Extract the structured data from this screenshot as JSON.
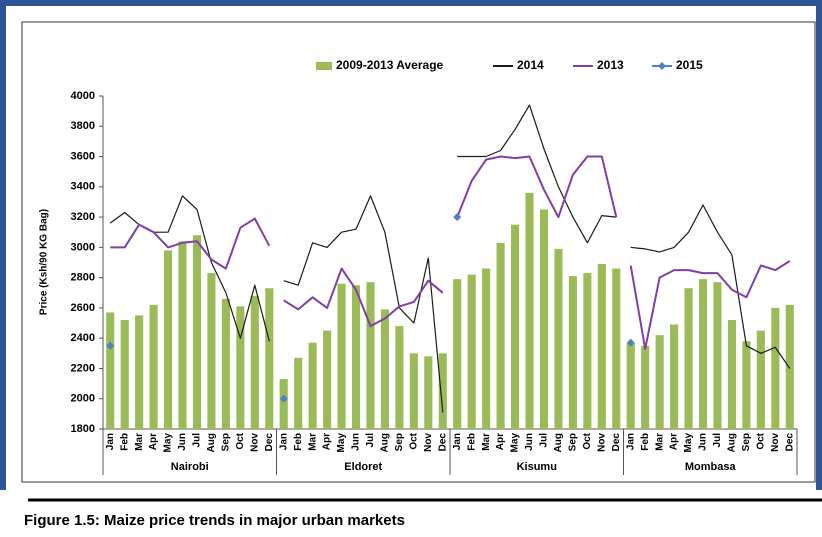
{
  "chart_data": {
    "type": "bar",
    "y_label": "Price (Ksh/90 KG Bag)",
    "caption": "Figure 1.5:   Maize price trends in major urban markets",
    "categories": [
      "Jan",
      "Feb",
      "Mar",
      "Apr",
      "May",
      "Jun",
      "Jul",
      "Aug",
      "Sep",
      "Oct",
      "Nov",
      "Dec",
      "Jan",
      "Feb",
      "Mar",
      "Apr",
      "May",
      "Jun",
      "Jul",
      "Aug",
      "Sep",
      "Oct",
      "Nov",
      "Dec",
      "Jan",
      "Feb",
      "Mar",
      "Apr",
      "May",
      "Jun",
      "Jul",
      "Aug",
      "Sep",
      "Oct",
      "Nov",
      "Dec",
      "Jan",
      "Feb",
      "Mar",
      "Apr",
      "May",
      "Jun",
      "Jul",
      "Aug",
      "Sep",
      "Oct",
      "Nov",
      "Dec"
    ],
    "groups": [
      "Nairobi",
      "Eldoret",
      "Kisumu",
      "Mombasa"
    ],
    "series": [
      {
        "name": "2009-2013 Average",
        "type": "bar",
        "color": "#9bbb59",
        "values": [
          2570,
          2520,
          2550,
          2620,
          2980,
          3040,
          3080,
          2830,
          2660,
          2610,
          2680,
          2730,
          2130,
          2270,
          2370,
          2450,
          2760,
          2750,
          2770,
          2590,
          2480,
          2300,
          2280,
          2300,
          2790,
          2820,
          2860,
          3030,
          3150,
          3360,
          3250,
          2990,
          2810,
          2830,
          2890,
          2860,
          2370,
          2350,
          2420,
          2490,
          2730,
          2790,
          2770,
          2520,
          2380,
          2450,
          2600,
          2620
        ]
      },
      {
        "name": "2014",
        "type": "line",
        "color": "#1a1a1a",
        "values": [
          3160,
          3230,
          3150,
          3100,
          3100,
          3340,
          3250,
          2900,
          2700,
          2400,
          2750,
          2380,
          2780,
          2750,
          3030,
          3000,
          3100,
          3120,
          3340,
          3100,
          2600,
          2500,
          2930,
          1910,
          3600,
          3600,
          3600,
          3640,
          3780,
          3940,
          3650,
          3400,
          3200,
          3030,
          3210,
          3200,
          3000,
          2990,
          2970,
          3000,
          3100,
          3280,
          3100,
          2950,
          2350,
          2300,
          2340,
          2200
        ]
      },
      {
        "name": "2013",
        "type": "line",
        "color": "#7f3fa8",
        "values": [
          3000,
          3000,
          3150,
          3100,
          3000,
          3030,
          3040,
          2920,
          2860,
          3130,
          3190,
          3010,
          2650,
          2590,
          2670,
          2600,
          2860,
          2720,
          2480,
          2530,
          2610,
          2640,
          2780,
          2700,
          3200,
          3440,
          3580,
          3600,
          3590,
          3600,
          3380,
          3200,
          3480,
          3600,
          3600,
          3200,
          2880,
          2330,
          2800,
          2850,
          2850,
          2830,
          2830,
          2720,
          2670,
          2880,
          2850,
          2910
        ]
      },
      {
        "name": "2015",
        "type": "marker",
        "color": "#4f81bd",
        "values": [
          2350,
          null,
          null,
          null,
          null,
          null,
          null,
          null,
          null,
          null,
          null,
          null,
          2000,
          null,
          null,
          null,
          null,
          null,
          null,
          null,
          null,
          null,
          null,
          null,
          3200,
          null,
          null,
          null,
          null,
          null,
          null,
          null,
          null,
          null,
          null,
          null,
          2370,
          null,
          null,
          null,
          null,
          null,
          null,
          null,
          null,
          null,
          null,
          null
        ]
      }
    ],
    "ylim": [
      1800,
      4000
    ],
    "yticks": [
      1800,
      2000,
      2200,
      2400,
      2600,
      2800,
      3000,
      3200,
      3400,
      3600,
      3800,
      4000
    ],
    "grid": false,
    "legend": "top"
  }
}
